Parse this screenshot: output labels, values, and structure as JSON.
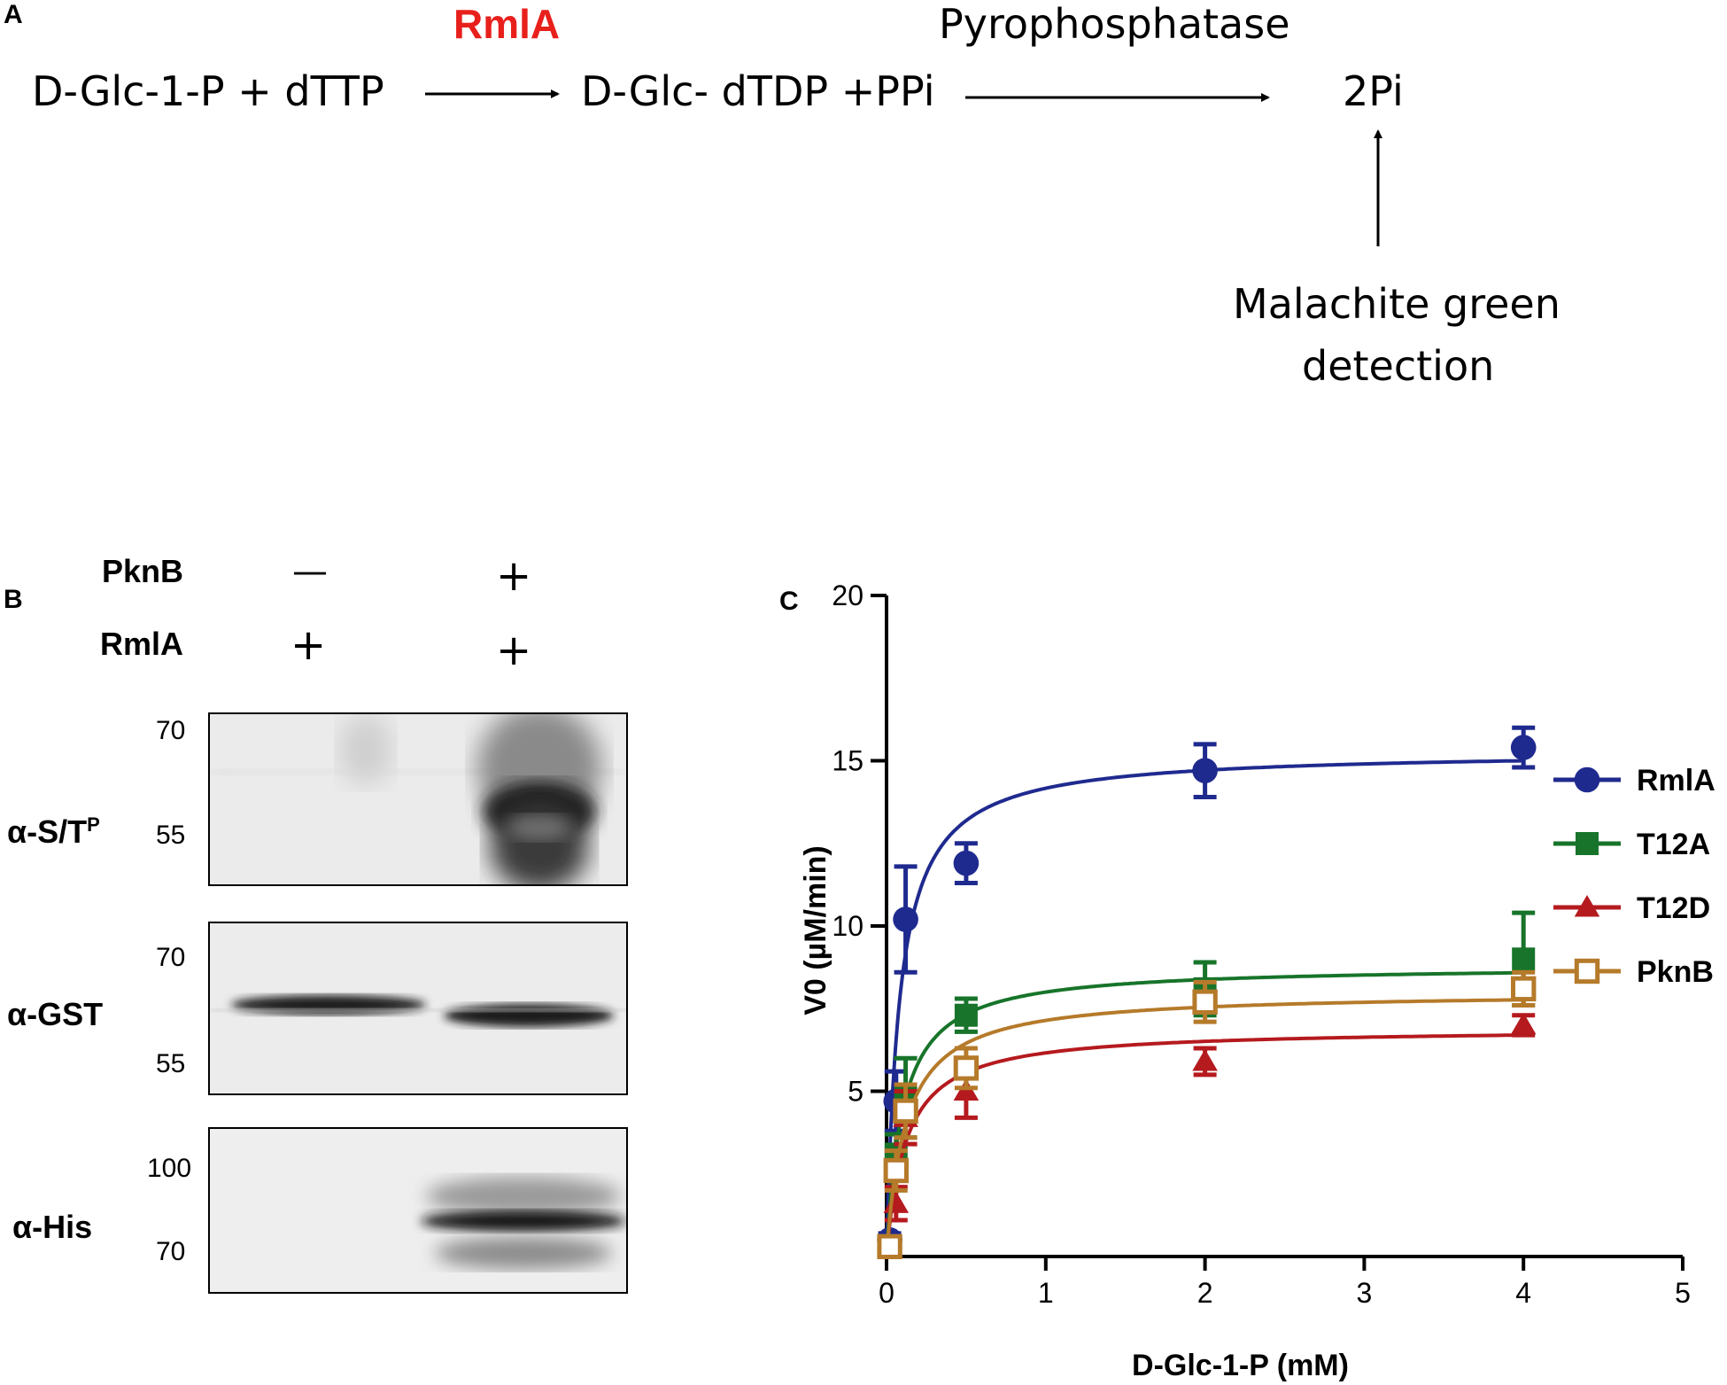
{
  "panel_a": {
    "letter": "A",
    "substrate": "D-Glc-1-P + dTTP",
    "enzyme1": "RmlA",
    "product": "D-Glc- dTDP +PPi",
    "enzyme2": "Pyrophosphatase",
    "final_product": "2Pi",
    "detection_line1": "Malachite green",
    "detection_line2": "detection"
  },
  "panel_b": {
    "letter": "B",
    "row_pknb": "PknB",
    "row_rmla": "RmlA",
    "pknb_lane1": "—",
    "pknb_lane2": "+",
    "rmla_lane1": "+",
    "rmla_lane2": "+",
    "blots": [
      {
        "antibody": "α-S/T",
        "antibody_sup": "P",
        "mw_top": "70",
        "mw_bottom": "55"
      },
      {
        "antibody": "α-GST",
        "mw_top": "70",
        "mw_bottom": "55"
      },
      {
        "antibody": "α-His",
        "mw_top": "100",
        "mw_bottom": "70"
      }
    ]
  },
  "panel_c": {
    "letter": "C"
  },
  "chart_data": {
    "type": "scatter",
    "title": "",
    "xlabel": "D-Glc-1-P (mM)",
    "ylabel": "V0 (µM/min)",
    "xlim": [
      0,
      5
    ],
    "ylim": [
      0,
      20
    ],
    "xticks": [
      0,
      1,
      2,
      3,
      4,
      5
    ],
    "yticks": [
      5,
      10,
      15,
      20
    ],
    "grid": false,
    "legend_position": "right",
    "fit": "Michaelis-Menten",
    "series": [
      {
        "name": "RmlA",
        "color": "#1f2a8f",
        "marker": "circle",
        "x": [
          0.02,
          0.06,
          0.12,
          0.5,
          2,
          4
        ],
        "y": [
          0.5,
          4.7,
          10.2,
          11.9,
          14.7,
          15.4
        ],
        "err": [
          0.2,
          0.9,
          1.6,
          0.6,
          0.8,
          0.6
        ],
        "fit_vmax": 15.3,
        "fit_km": 0.08
      },
      {
        "name": "T12A",
        "color": "#17742a",
        "marker": "square",
        "x": [
          0.02,
          0.06,
          0.12,
          0.5,
          2,
          4
        ],
        "y": [
          0.3,
          3.1,
          4.8,
          7.3,
          8.1,
          9.0
        ],
        "err": [
          0.2,
          0.6,
          1.2,
          0.5,
          0.8,
          1.4
        ],
        "fit_vmax": 8.8,
        "fit_km": 0.1
      },
      {
        "name": "T12D",
        "color": "#b51a1e",
        "marker": "triangle",
        "x": [
          0.02,
          0.06,
          0.12,
          0.5,
          2,
          4
        ],
        "y": [
          0.3,
          1.6,
          4.2,
          5.0,
          5.9,
          7.0
        ],
        "err": [
          0.2,
          0.5,
          0.8,
          0.8,
          0.4,
          0.3
        ],
        "fit_vmax": 6.9,
        "fit_km": 0.12
      },
      {
        "name": "PknB",
        "color": "#b57a2a",
        "marker": "open-square",
        "x": [
          0.02,
          0.06,
          0.12,
          0.5,
          2,
          4
        ],
        "y": [
          0.3,
          2.6,
          4.4,
          5.7,
          7.7,
          8.1
        ],
        "err": [
          0.2,
          0.6,
          0.8,
          0.6,
          0.6,
          0.5
        ],
        "fit_vmax": 8.0,
        "fit_km": 0.12
      }
    ]
  }
}
